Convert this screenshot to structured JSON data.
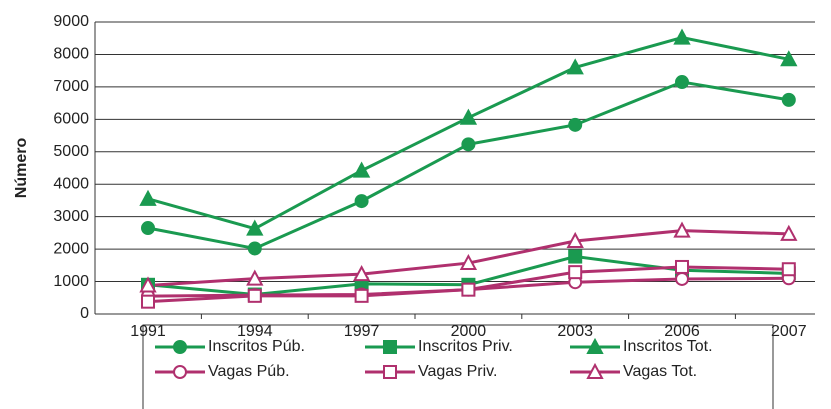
{
  "chart_data": {
    "type": "line",
    "y_label": "Número",
    "categories": [
      "1991",
      "1994",
      "1997",
      "2000",
      "2003",
      "2006",
      "2007"
    ],
    "ylim": [
      0,
      9000
    ],
    "yticks": [
      0,
      1000,
      2000,
      3000,
      4000,
      5000,
      6000,
      7000,
      8000,
      9000
    ],
    "grid": true,
    "legend": "bottom",
    "series": [
      {
        "name": "Inscritos Púb.",
        "color": "#1a9a50",
        "marker": "circle",
        "filled": true,
        "values": [
          2650,
          2020,
          3480,
          5230,
          5830,
          7150,
          6600
        ]
      },
      {
        "name": "Inscritos Priv.",
        "color": "#1a9a50",
        "marker": "square",
        "filled": true,
        "values": [
          900,
          600,
          930,
          900,
          1770,
          1350,
          1250
        ]
      },
      {
        "name": "Inscritos Tot.",
        "color": "#1a9a50",
        "marker": "triangle",
        "filled": true,
        "values": [
          3550,
          2630,
          4420,
          6050,
          7600,
          8520,
          7850
        ]
      },
      {
        "name": "Vagas Púb.",
        "color": "#b0306e",
        "marker": "circle",
        "filled": false,
        "values": [
          550,
          580,
          600,
          750,
          980,
          1080,
          1100
        ]
      },
      {
        "name": "Vagas Priv.",
        "color": "#b0306e",
        "marker": "square",
        "filled": false,
        "values": [
          380,
          560,
          560,
          750,
          1290,
          1450,
          1380
        ]
      },
      {
        "name": "Vagas Tot.",
        "color": "#b0306e",
        "marker": "triangle",
        "filled": false,
        "values": [
          880,
          1090,
          1230,
          1570,
          2250,
          2570,
          2470
        ]
      }
    ]
  }
}
